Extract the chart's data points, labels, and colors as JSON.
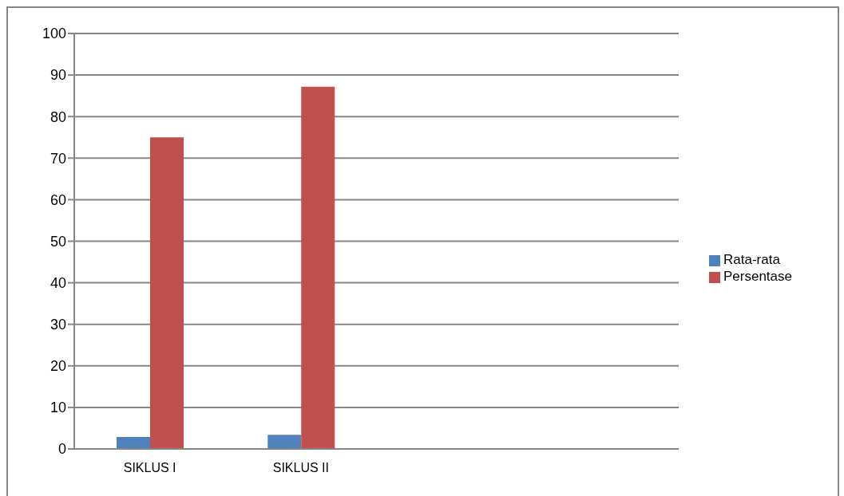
{
  "chart_data": {
    "type": "bar",
    "categories": [
      "SIKLUS I",
      "SIKLUS II",
      null,
      null
    ],
    "series": [
      {
        "name": "Rata-rata",
        "color": "#4f81bd",
        "values": [
          2.9,
          3.4,
          null,
          null
        ]
      },
      {
        "name": "Persentase",
        "color": "#c0504d",
        "values": [
          75,
          87.2,
          null,
          null
        ]
      }
    ],
    "ylim": [
      0,
      100
    ],
    "yticks": [
      0,
      10,
      20,
      30,
      40,
      50,
      60,
      70,
      80,
      90,
      100
    ],
    "grid": "y",
    "legend": "right"
  }
}
